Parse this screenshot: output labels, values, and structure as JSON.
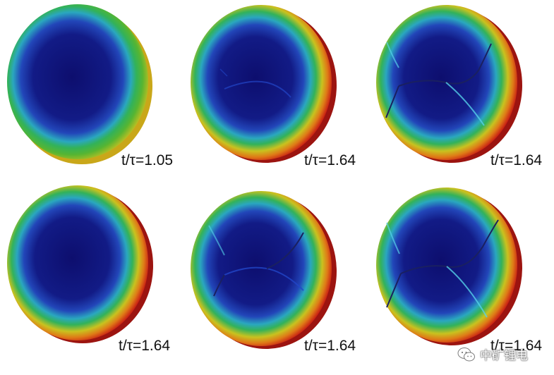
{
  "panels": [
    {
      "label": "t/τ=1.05",
      "cracks": "none",
      "rim_color": "#d9b51f"
    },
    {
      "label": "t/τ=1.64",
      "cracks": "faint",
      "rim_color": "#c21a12"
    },
    {
      "label": "t/τ=1.64",
      "cracks": "full",
      "rim_color": "#c21a12"
    },
    {
      "label": "t/τ=1.64",
      "cracks": "none",
      "rim_color": "#c21a12"
    },
    {
      "label": "t/τ=1.64",
      "cracks": "partial",
      "rim_color": "#c21a12"
    },
    {
      "label": "t/τ=1.64",
      "cracks": "full",
      "rim_color": "#c21a12"
    }
  ],
  "watermark": {
    "text": "中矿锂电",
    "icon": "wechat-icon"
  },
  "colors": {
    "core": "#10106a",
    "mid_blue": "#1f3fb8",
    "cyan": "#27b3c0",
    "green": "#2fae46",
    "yellow": "#d9c21e",
    "red": "#c81c14"
  }
}
